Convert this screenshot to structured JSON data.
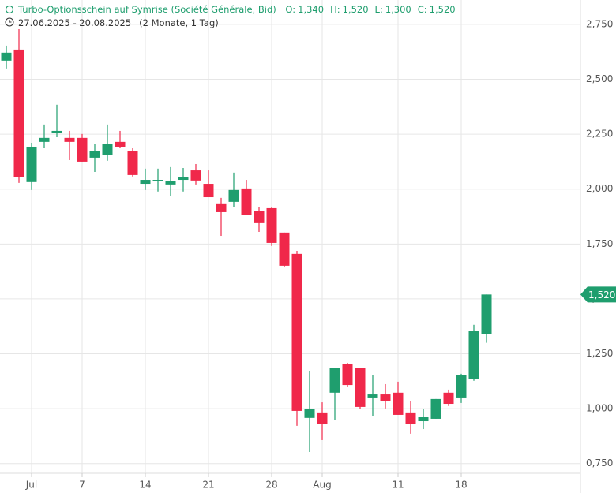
{
  "header": {
    "title": "Turbo-Optionsschein auf Symrise (Société Générale, Bid)",
    "ohlc": [
      {
        "key": "O:",
        "value": "1,340"
      },
      {
        "key": "H:",
        "value": "1,520"
      },
      {
        "key": "L:",
        "value": "1,300"
      },
      {
        "key": "C:",
        "value": "1,520"
      }
    ],
    "range": "27.06.2025 - 20.08.2025",
    "period": "(2 Monate, 1 Tag)"
  },
  "chart_data": {
    "type": "candlestick",
    "categories": [
      null,
      null,
      "Jul",
      null,
      null,
      null,
      "7",
      null,
      null,
      null,
      null,
      "14",
      null,
      null,
      null,
      null,
      "21",
      null,
      null,
      null,
      null,
      "28",
      null,
      null,
      null,
      "Aug",
      null,
      null,
      null,
      null,
      null,
      "11",
      null,
      null,
      null,
      null,
      "18",
      null,
      null
    ],
    "open": [
      2.585,
      2.635,
      2.032,
      2.215,
      2.254,
      2.233,
      2.233,
      2.143,
      2.154,
      2.215,
      2.175,
      2.024,
      2.035,
      2.021,
      2.042,
      2.085,
      2.024,
      1.935,
      1.942,
      2.003,
      1.902,
      1.913,
      1.802,
      1.705,
      0.958,
      0.983,
      1.073,
      1.202,
      1.184,
      1.051,
      1.065,
      1.073,
      0.983,
      0.943,
      0.954,
      1.073,
      1.051,
      1.134,
      1.34
    ],
    "high": [
      2.653,
      2.728,
      2.211,
      2.294,
      2.384,
      2.265,
      2.251,
      2.204,
      2.294,
      2.265,
      2.186,
      2.093,
      2.093,
      2.1,
      2.096,
      2.114,
      2.085,
      1.96,
      2.075,
      2.042,
      1.92,
      1.92,
      1.802,
      1.719,
      1.173,
      1.029,
      1.184,
      1.209,
      1.184,
      1.152,
      1.112,
      1.123,
      1.033,
      0.997,
      1.044,
      1.087,
      1.159,
      1.382,
      1.52
    ],
    "low": [
      2.549,
      2.028,
      1.996,
      2.186,
      2.236,
      2.132,
      2.125,
      2.078,
      2.129,
      2.186,
      2.057,
      1.996,
      1.989,
      1.967,
      1.989,
      2.021,
      1.963,
      1.787,
      1.92,
      1.884,
      1.805,
      1.741,
      1.647,
      0.922,
      0.803,
      0.857,
      0.947,
      1.101,
      0.997,
      0.965,
      1.001,
      0.972,
      0.886,
      0.907,
      0.954,
      1.012,
      1.026,
      1.127,
      1.3
    ],
    "close": [
      2.621,
      2.053,
      2.193,
      2.233,
      2.265,
      2.215,
      2.125,
      2.175,
      2.204,
      2.193,
      2.064,
      2.042,
      2.042,
      2.035,
      2.053,
      2.039,
      1.963,
      1.895,
      1.996,
      1.884,
      1.845,
      1.755,
      1.651,
      0.99,
      0.997,
      0.932,
      1.184,
      1.108,
      1.008,
      1.065,
      1.033,
      0.972,
      0.929,
      0.961,
      1.044,
      1.022,
      1.152,
      1.353,
      1.52
    ],
    "up_color": "#1f9e6e",
    "down_color": "#f0284a",
    "ylim": [
      0.706,
      2.861
    ],
    "yticks": [
      {
        "value": 0.75,
        "label": "0,750"
      },
      {
        "value": 1.0,
        "label": "1,000"
      },
      {
        "value": 1.25,
        "label": "1,250"
      },
      {
        "value": 1.5,
        "label": "1,500"
      },
      {
        "value": 1.75,
        "label": "1,750"
      },
      {
        "value": 2.0,
        "label": "2,000"
      },
      {
        "value": 2.25,
        "label": "2,250"
      },
      {
        "value": 2.5,
        "label": "2,500"
      },
      {
        "value": 2.75,
        "label": "2,750"
      }
    ],
    "last_price": {
      "value": 1.52,
      "label": "1,520"
    },
    "grid": true
  }
}
